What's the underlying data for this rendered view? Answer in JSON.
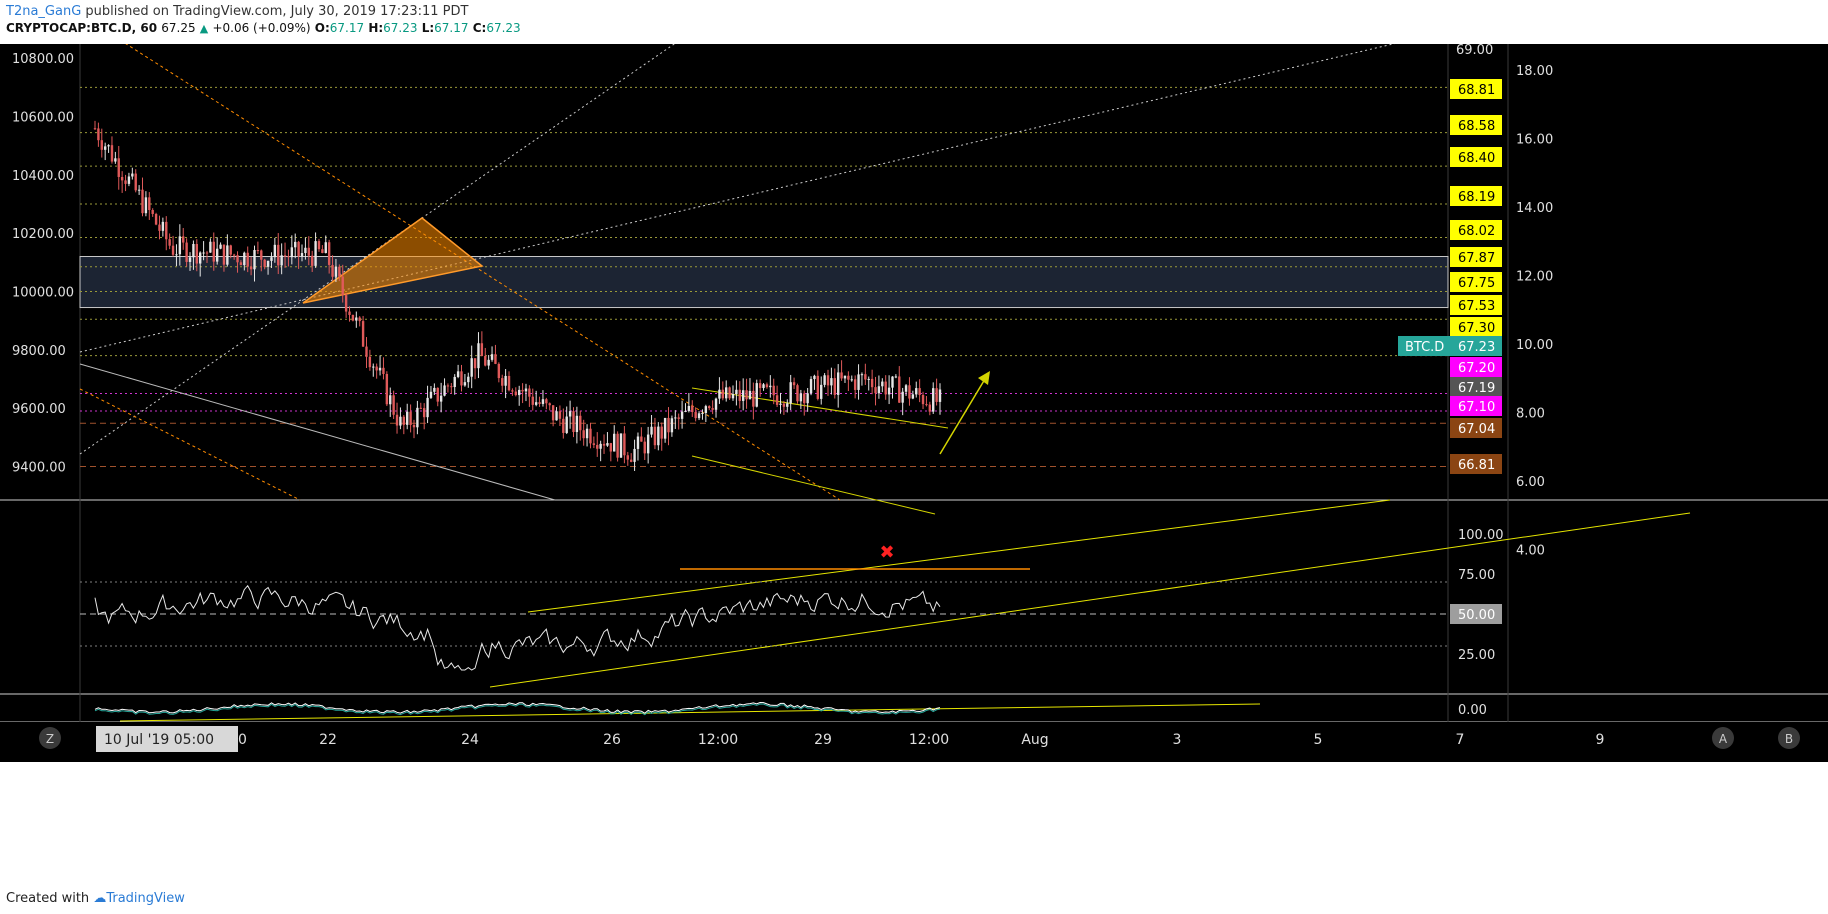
{
  "header": {
    "author": "T2na_GanG",
    "published": "published on TradingView.com, July 30, 2019 17:23:11 PDT",
    "symbol": "CRYPTOCAP:BTC.D, 60",
    "last": "67.25",
    "change": "+0.06 (+0.09%)",
    "o_label": "O:",
    "o": "67.17",
    "h_label": "H:",
    "h": "67.23",
    "l_label": "L:",
    "l": "67.17",
    "c_label": "C:",
    "c": "67.23"
  },
  "footer": {
    "created_with": "Created with",
    "brand": "TradingView"
  },
  "colors": {
    "background": "#000000",
    "up": "#e6e6e6",
    "down": "#e05a5a",
    "yellow": "#ffff00",
    "orange": "#ff8c00",
    "magenta": "#ff00ff",
    "teal": "#26a69a",
    "brown": "#8b4513",
    "grey_label": "#9e9e9e"
  },
  "chart_data": [
    {
      "type": "candlestick",
      "panel": "price",
      "symbol_label": "BTC.D",
      "left_axis_ticks": [
        "10800.00",
        "10600.00",
        "10400.00",
        "10200.00",
        "10000.00",
        "9800.00",
        "9600.00",
        "9400.00"
      ],
      "left_axis_range": [
        9285,
        10835
      ],
      "right_axis_ticks": [
        "69.00",
        "68.81",
        "68.58",
        "68.40",
        "68.19",
        "68.02",
        "67.87",
        "67.75",
        "67.53",
        "67.30",
        "67.23",
        "67.20",
        "67.19",
        "67.10",
        "67.04",
        "66.81"
      ],
      "secondary_axis_ticks": [
        "18.00",
        "16.00",
        "14.00",
        "12.00",
        "10.00",
        "8.00",
        "6.00",
        "4.00"
      ],
      "price_labels": [
        {
          "value": "68.81",
          "style": "yellow"
        },
        {
          "value": "68.58",
          "style": "yellow"
        },
        {
          "value": "68.40",
          "style": "yellow"
        },
        {
          "value": "68.19",
          "style": "yellow"
        },
        {
          "value": "68.02",
          "style": "yellow"
        },
        {
          "value": "67.87",
          "style": "yellow"
        },
        {
          "value": "67.75",
          "style": "yellow"
        },
        {
          "value": "67.53",
          "style": "yellow"
        },
        {
          "value": "67.30",
          "style": "yellow"
        },
        {
          "value": "67.23",
          "style": "teal",
          "tag": "BTC.D"
        },
        {
          "value": "67.20",
          "style": "magenta"
        },
        {
          "value": "67.19",
          "style": "grey"
        },
        {
          "value": "67.10",
          "style": "magenta"
        },
        {
          "value": "67.04",
          "style": "brown"
        },
        {
          "value": "66.81",
          "style": "brown"
        }
      ],
      "horizontal_levels_left_scale": [
        10700,
        10545,
        10430,
        10300,
        10185,
        10085,
        10000,
        9905,
        9780,
        9650,
        9590,
        9548,
        9400
      ],
      "zone": {
        "from": 9945,
        "to": 10120
      },
      "approx_close_path": [
        {
          "x": "20 Jul",
          "y": 10560
        },
        {
          "x": "21 Jul",
          "y": 10150
        },
        {
          "x": "22 Jul",
          "y": 10120
        },
        {
          "x": "23 Jul",
          "y": 10130
        },
        {
          "x": "24 Jul",
          "y": 9530
        },
        {
          "x": "25 Jul",
          "y": 9780
        },
        {
          "x": "26 Jul",
          "y": 9570
        },
        {
          "x": "27 Jul",
          "y": 9450
        },
        {
          "x": "28 Jul",
          "y": 9630
        },
        {
          "x": "29 Jul",
          "y": 9650
        },
        {
          "x": "30 Jul",
          "y": 9700
        },
        {
          "x": "30 Jul 17:00",
          "y": 9620
        }
      ]
    },
    {
      "type": "line",
      "panel": "rsi",
      "axis_ticks": [
        "100.00",
        "75.00",
        "50.00",
        "25.00"
      ],
      "axis_range": [
        0,
        120
      ],
      "levels": [
        70,
        50,
        30
      ],
      "current_label": "50.00"
    },
    {
      "type": "line",
      "panel": "macd",
      "axis_ticks": [
        "0.00"
      ]
    }
  ],
  "x_axis": {
    "ticks": [
      "20",
      "22",
      "24",
      "26",
      "12:00",
      "29",
      "12:00",
      "Aug",
      "3",
      "5",
      "7",
      "9"
    ],
    "cursor_label": "10 Jul '19   05:00"
  },
  "buttons": {
    "z": "Z",
    "a": "A",
    "b": "B"
  }
}
